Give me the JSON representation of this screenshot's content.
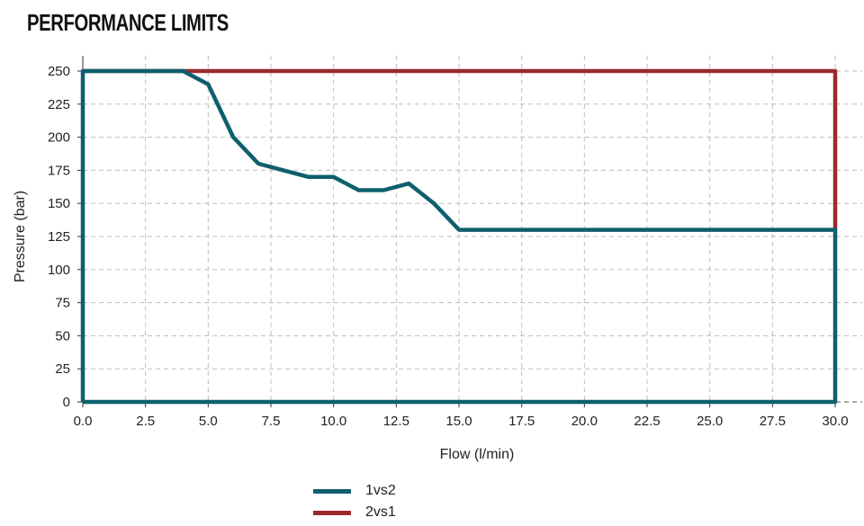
{
  "title": "PERFORMANCE LIMITS",
  "chart_data": {
    "type": "line",
    "xlabel": "Flow (l/min)",
    "ylabel": "Pressure (bar)",
    "xlim": [
      0,
      30
    ],
    "ylim": [
      0,
      250
    ],
    "xticks": [
      "0.0",
      "2.5",
      "5.0",
      "7.5",
      "10.0",
      "12.5",
      "15.0",
      "17.5",
      "20.0",
      "22.5",
      "25.0",
      "27.5",
      "30.0"
    ],
    "yticks": [
      "0",
      "25",
      "50",
      "75",
      "100",
      "125",
      "150",
      "175",
      "200",
      "225",
      "250"
    ],
    "grid": true,
    "legend_position": "bottom",
    "series": [
      {
        "name": "2vs1",
        "color": "#9b2a2e",
        "x": [
          0,
          30,
          30
        ],
        "y": [
          250,
          250,
          130
        ]
      },
      {
        "name": "1vs2",
        "color": "#0e5f6e",
        "x": [
          0,
          0,
          4,
          5,
          6,
          7,
          8,
          9,
          10,
          11,
          12,
          13,
          14,
          15,
          30,
          30,
          0
        ],
        "y": [
          0,
          250,
          250,
          240,
          200,
          180,
          175,
          170,
          170,
          160,
          160,
          165,
          150,
          130,
          130,
          0,
          0
        ]
      }
    ],
    "legend": [
      {
        "name": "1vs2",
        "color": "#0e5f6e"
      },
      {
        "name": "2vs1",
        "color": "#9b2a2e"
      }
    ]
  }
}
